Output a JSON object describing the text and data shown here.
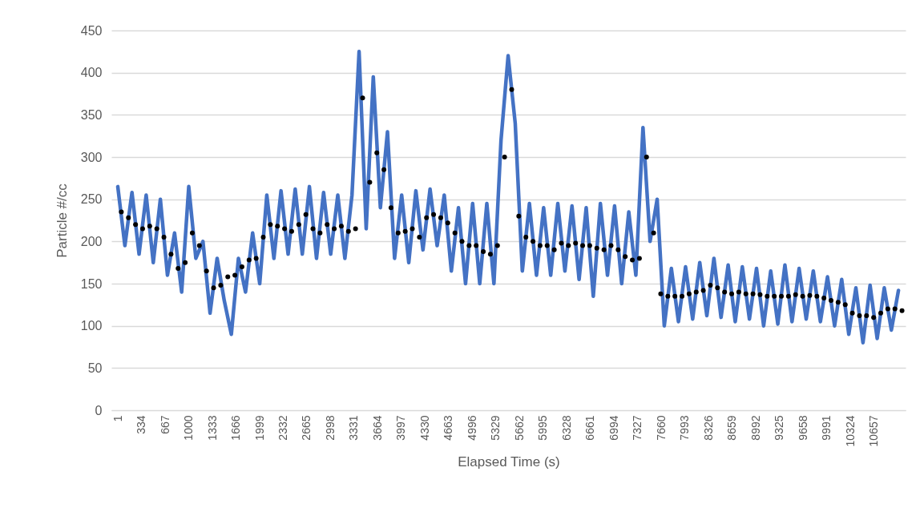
{
  "chart_data": {
    "type": "line",
    "xlabel": "Elapsed Time (s)",
    "ylabel": "Particle #/cc",
    "xlim": [
      -90,
      11100
    ],
    "ylim": [
      0,
      450
    ],
    "xticks": [
      1,
      334,
      667,
      1000,
      1333,
      1666,
      1999,
      2332,
      2665,
      2998,
      3331,
      3664,
      3997,
      4330,
      4663,
      4996,
      5329,
      5662,
      5995,
      6328,
      6661,
      6994,
      7327,
      7660,
      7993,
      8326,
      8659,
      8992,
      9325,
      9658,
      9991,
      10324,
      10657
    ],
    "yticks": [
      0,
      50,
      100,
      150,
      200,
      250,
      300,
      350,
      400,
      450
    ],
    "grid": "y",
    "series": [
      {
        "color": "#4472c4",
        "x": [
          0,
          100,
          200,
          300,
          400,
          500,
          600,
          700,
          800,
          900,
          1000,
          1100,
          1200,
          1300,
          1400,
          1500,
          1600,
          1700,
          1800,
          1900,
          2000,
          2100,
          2200,
          2300,
          2400,
          2500,
          2600,
          2700,
          2800,
          2900,
          3000,
          3100,
          3200,
          3300,
          3400,
          3500,
          3600,
          3700,
          3800,
          3900,
          4000,
          4100,
          4200,
          4300,
          4400,
          4500,
          4600,
          4700,
          4800,
          4900,
          5000,
          5100,
          5200,
          5300,
          5400,
          5500,
          5600,
          5700,
          5800,
          5900,
          6000,
          6100,
          6200,
          6300,
          6400,
          6500,
          6600,
          6700,
          6800,
          6900,
          7000,
          7100,
          7200,
          7300,
          7400,
          7500,
          7600,
          7700,
          7800,
          7900,
          8000,
          8100,
          8200,
          8300,
          8400,
          8500,
          8600,
          8700,
          8800,
          8900,
          9000,
          9100,
          9200,
          9300,
          9400,
          9500,
          9600,
          9700,
          9800,
          9900,
          10000,
          10100,
          10200,
          10300,
          10400,
          10500,
          10600,
          10700,
          10800,
          10900,
          11000
        ],
        "values": [
          265,
          195,
          258,
          185,
          255,
          175,
          250,
          160,
          210,
          140,
          265,
          180,
          200,
          115,
          180,
          130,
          90,
          180,
          140,
          210,
          150,
          255,
          180,
          260,
          185,
          262,
          185,
          265,
          180,
          258,
          185,
          255,
          180,
          255,
          425,
          215,
          395,
          240,
          330,
          180,
          255,
          175,
          260,
          190,
          262,
          195,
          255,
          165,
          240,
          150,
          245,
          150,
          245,
          150,
          320,
          420,
          340,
          165,
          245,
          160,
          240,
          160,
          245,
          165,
          242,
          155,
          240,
          135,
          245,
          160,
          242,
          150,
          235,
          160,
          335,
          200,
          250,
          100,
          168,
          105,
          170,
          108,
          175,
          112,
          180,
          110,
          172,
          105,
          170,
          108,
          168,
          100,
          165,
          102,
          172,
          105,
          168,
          108,
          165,
          105,
          158,
          100,
          155,
          90,
          145,
          80,
          148,
          85,
          145,
          95,
          142
        ]
      },
      {
        "type": "scatter",
        "color": "#000000",
        "marker": "circle",
        "x": [
          50,
          150,
          250,
          350,
          450,
          550,
          650,
          750,
          850,
          950,
          1050,
          1150,
          1250,
          1350,
          1450,
          1550,
          1650,
          1750,
          1850,
          1950,
          2050,
          2150,
          2250,
          2350,
          2450,
          2550,
          2650,
          2750,
          2850,
          2950,
          3050,
          3150,
          3250,
          3350,
          3450,
          3550,
          3650,
          3750,
          3850,
          3950,
          4050,
          4150,
          4250,
          4350,
          4450,
          4550,
          4650,
          4750,
          4850,
          4950,
          5050,
          5150,
          5250,
          5350,
          5450,
          5550,
          5650,
          5750,
          5850,
          5950,
          6050,
          6150,
          6250,
          6350,
          6450,
          6550,
          6650,
          6750,
          6850,
          6950,
          7050,
          7150,
          7250,
          7350,
          7450,
          7550,
          7650,
          7750,
          7850,
          7950,
          8050,
          8150,
          8250,
          8350,
          8450,
          8550,
          8650,
          8750,
          8850,
          8950,
          9050,
          9150,
          9250,
          9350,
          9450,
          9550,
          9650,
          9750,
          9850,
          9950,
          10050,
          10150,
          10250,
          10350,
          10450,
          10550,
          10650,
          10750,
          10850,
          10950,
          11050
        ],
        "values": [
          235,
          228,
          220,
          215,
          218,
          215,
          205,
          185,
          168,
          175,
          210,
          195,
          165,
          145,
          148,
          158,
          160,
          170,
          178,
          180,
          205,
          220,
          218,
          215,
          212,
          220,
          232,
          215,
          210,
          220,
          215,
          218,
          212,
          215,
          370,
          270,
          305,
          285,
          240,
          210,
          212,
          215,
          205,
          228,
          232,
          228,
          222,
          210,
          200,
          195,
          195,
          188,
          185,
          195,
          300,
          380,
          230,
          205,
          200,
          195,
          195,
          190,
          198,
          195,
          198,
          195,
          195,
          192,
          190,
          195,
          190,
          182,
          178,
          180,
          300,
          210,
          138,
          135,
          135,
          135,
          138,
          140,
          142,
          148,
          145,
          140,
          138,
          140,
          138,
          138,
          137,
          135,
          135,
          135,
          135,
          137,
          135,
          136,
          135,
          133,
          130,
          128,
          125,
          115,
          112,
          112,
          110,
          115,
          120,
          120,
          118
        ]
      }
    ]
  }
}
